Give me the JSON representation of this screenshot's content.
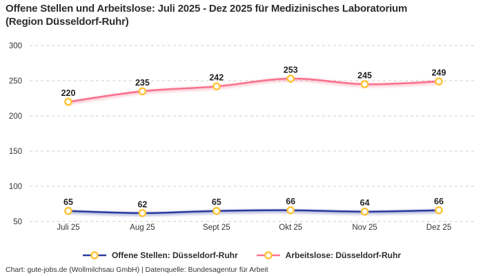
{
  "title": {
    "line1": "Offene Stellen und Arbeitslose: Juli 2025 - Dez 2025 für Medizinisches Laboratorium",
    "line2": "(Region Düsseldorf-Ruhr)"
  },
  "chart_data": {
    "type": "line",
    "categories": [
      "Juli 25",
      "Aug 25",
      "Sept 25",
      "Okt 25",
      "Nov 25",
      "Dez 25"
    ],
    "series": [
      {
        "id": "offene-stellen",
        "name": "Offene Stellen: Düsseldorf-Ruhr",
        "values": [
          65,
          62,
          65,
          66,
          64,
          66
        ],
        "color": "#2b3a9e"
      },
      {
        "id": "arbeitslose",
        "name": "Arbeitslose: Düsseldorf-Ruhr",
        "values": [
          220,
          235,
          242,
          253,
          245,
          249
        ],
        "color": "#f7708c"
      }
    ],
    "marker": {
      "fill": "#ffffff",
      "stroke": "#ffc233"
    },
    "yaxis": {
      "ticks": [
        300,
        250,
        200,
        150,
        100,
        50
      ],
      "min": 50,
      "max": 300
    },
    "grid": {
      "style": "dashed",
      "color": "#cccccc"
    },
    "legend_position": "bottom"
  },
  "footer": {
    "text": "Chart: gute-jobs.de (Wollmilchsau GmbH) | Datenquelle: Bundesagentur für Arbeit"
  }
}
